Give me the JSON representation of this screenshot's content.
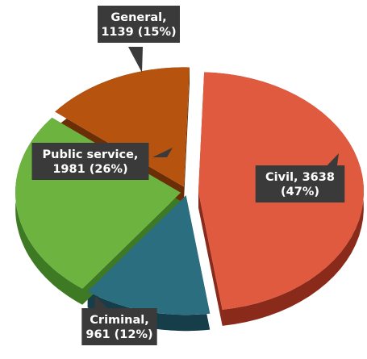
{
  "chart_data": {
    "type": "pie",
    "style": "3d-exploded",
    "series": [
      {
        "slices": [
          {
            "label": "Civil",
            "value": 3638,
            "percent": 47,
            "color": "#E05A3F",
            "side_color": "#8A2A1A",
            "label_lines": [
              "Civil, 3638",
              "(47%)"
            ]
          },
          {
            "label": "Criminal",
            "value": 961,
            "percent": 12,
            "color": "#2A6E80",
            "side_color": "#153E4A",
            "label_lines": [
              "Criminal,",
              "961 (12%)"
            ]
          },
          {
            "label": "Public service",
            "value": 1981,
            "percent": 26,
            "color": "#6DB33F",
            "side_color": "#3E7A23",
            "label_lines": [
              "Public service,",
              "1981 (26%)"
            ]
          },
          {
            "label": "General",
            "value": 1139,
            "percent": 15,
            "color": "#B5530F",
            "side_color": "#6B2E06",
            "label_lines": [
              "General,",
              "1139 (15%)"
            ]
          }
        ]
      }
    ],
    "legend": "none",
    "colors": {
      "callout_background": "#3A3A3A",
      "callout_text": "#FFFFFF"
    }
  }
}
